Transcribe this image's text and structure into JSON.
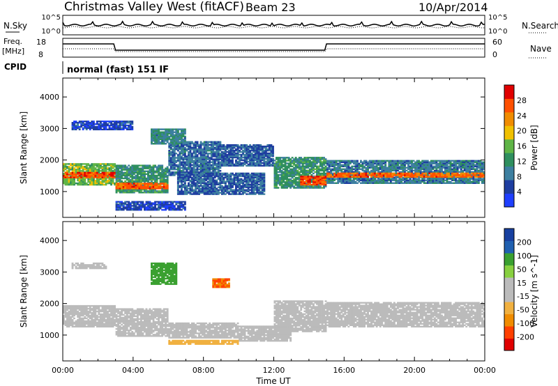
{
  "header": {
    "title": "Christmas Valley West (fitACF)",
    "beam": "Beam 23",
    "date": "10/Apr/2014"
  },
  "noise_panel": {
    "left_label": "N.Sky",
    "right_label": "N.Search",
    "left_ticks": [
      "10^5",
      "10^0"
    ],
    "right_ticks": [
      "10^5",
      "10^0"
    ]
  },
  "freq_panel": {
    "left_label_1": "Freq.",
    "left_label_2": "[MHz]",
    "right_label": "Nave",
    "left_ticks": [
      "18",
      "8"
    ],
    "right_ticks": [
      "60",
      "0"
    ]
  },
  "cpid": {
    "label": "CPID",
    "text": "normal (fast) 151 IF"
  },
  "colors": {
    "power": [
      "#1f3fff",
      "#1e3ea0",
      "#3d7fa0",
      "#2f8f5f",
      "#5fb446",
      "#f0c000",
      "#f08c00",
      "#ff5000",
      "#e00000"
    ],
    "velocity": [
      "#e00000",
      "#ff4000",
      "#f08c00",
      "#f0b040",
      "#bbbbbb",
      "#bbbbbb",
      "#88d040",
      "#3aa030",
      "#2060b0",
      "#1840a0"
    ]
  },
  "chart_data": [
    {
      "type": "heatmap",
      "title": "",
      "xlabel": "Time UT",
      "ylabel": "Slant Range [km]",
      "xlim": [
        0,
        24
      ],
      "ylim": [
        180,
        4600
      ],
      "x_ticks": [
        "00:00",
        "04:00",
        "08:00",
        "12:00",
        "16:00",
        "20:00",
        "00:00"
      ],
      "y_ticks": [
        "1000",
        "2000",
        "3000",
        "4000"
      ],
      "colorbar_label": "Power [dB]",
      "colorbar_ticks": [
        "4",
        "8",
        "12",
        "16",
        "20",
        "24",
        "28"
      ],
      "colorbar_range": [
        0,
        32
      ],
      "echo_bands": [
        {
          "x0": 0,
          "x1": 3,
          "r0": 1200,
          "r1": 1900,
          "value": 16
        },
        {
          "x0": 0,
          "x1": 3,
          "r0": 1430,
          "r1": 1620,
          "value": 27
        },
        {
          "x0": 3,
          "x1": 6,
          "r0": 950,
          "r1": 1850,
          "value": 12
        },
        {
          "x0": 3,
          "x1": 6,
          "r0": 1080,
          "r1": 1280,
          "value": 26
        },
        {
          "x0": 6,
          "x1": 9,
          "r0": 1500,
          "r1": 2600,
          "value": 8
        },
        {
          "x0": 6.5,
          "x1": 11.5,
          "r0": 900,
          "r1": 1600,
          "value": 7
        },
        {
          "x0": 9,
          "x1": 12,
          "r0": 1800,
          "r1": 2500,
          "value": 7
        },
        {
          "x0": 12,
          "x1": 15,
          "r0": 1100,
          "r1": 2100,
          "value": 12
        },
        {
          "x0": 13.5,
          "x1": 15,
          "r0": 1200,
          "r1": 1500,
          "value": 27
        },
        {
          "x0": 15,
          "x1": 24,
          "r0": 1250,
          "r1": 2000,
          "value": 9
        },
        {
          "x0": 15,
          "x1": 24,
          "r0": 1450,
          "r1": 1600,
          "value": 26
        },
        {
          "x0": 0.5,
          "x1": 4,
          "r0": 2950,
          "r1": 3250,
          "value": 5
        },
        {
          "x0": 5,
          "x1": 7,
          "r0": 2500,
          "r1": 3000,
          "value": 10
        },
        {
          "x0": 3,
          "x1": 7,
          "r0": 400,
          "r1": 700,
          "value": 5
        }
      ]
    },
    {
      "type": "heatmap",
      "title": "",
      "xlabel": "Time UT",
      "ylabel": "Slant Range [km]",
      "xlim": [
        0,
        24
      ],
      "ylim": [
        180,
        4600
      ],
      "x_ticks": [
        "00:00",
        "04:00",
        "08:00",
        "12:00",
        "16:00",
        "20:00",
        "00:00"
      ],
      "y_ticks": [
        "1000",
        "2000",
        "3000",
        "4000"
      ],
      "colorbar_label": "Velocity [m s^-1]",
      "colorbar_ticks": [
        "200",
        "100",
        "50",
        "15",
        "-15",
        "-50",
        "-100",
        "-200"
      ],
      "colorbar_range": [
        -250,
        250
      ],
      "echo_bands": [
        {
          "x0": 0,
          "x1": 3,
          "r0": 1250,
          "r1": 1950,
          "value": 0
        },
        {
          "x0": 3,
          "x1": 6,
          "r0": 950,
          "r1": 1850,
          "value": -5
        },
        {
          "x0": 6,
          "x1": 10,
          "r0": 900,
          "r1": 1400,
          "value": 5
        },
        {
          "x0": 10,
          "x1": 13,
          "r0": 800,
          "r1": 1300,
          "value": 40
        },
        {
          "x0": 12,
          "x1": 15,
          "r0": 1100,
          "r1": 2100,
          "value": 35
        },
        {
          "x0": 15,
          "x1": 24,
          "r0": 1250,
          "r1": 2050,
          "value": 0
        },
        {
          "x0": 0.5,
          "x1": 2.5,
          "r0": 3100,
          "r1": 3300,
          "value": -30
        },
        {
          "x0": 5,
          "x1": 6.5,
          "r0": 2600,
          "r1": 3300,
          "value": 120
        },
        {
          "x0": 6,
          "x1": 10,
          "r0": 700,
          "r1": 850,
          "value": -60
        },
        {
          "x0": 8.5,
          "x1": 9.5,
          "r0": 2500,
          "r1": 2800,
          "value": -150
        }
      ]
    }
  ]
}
